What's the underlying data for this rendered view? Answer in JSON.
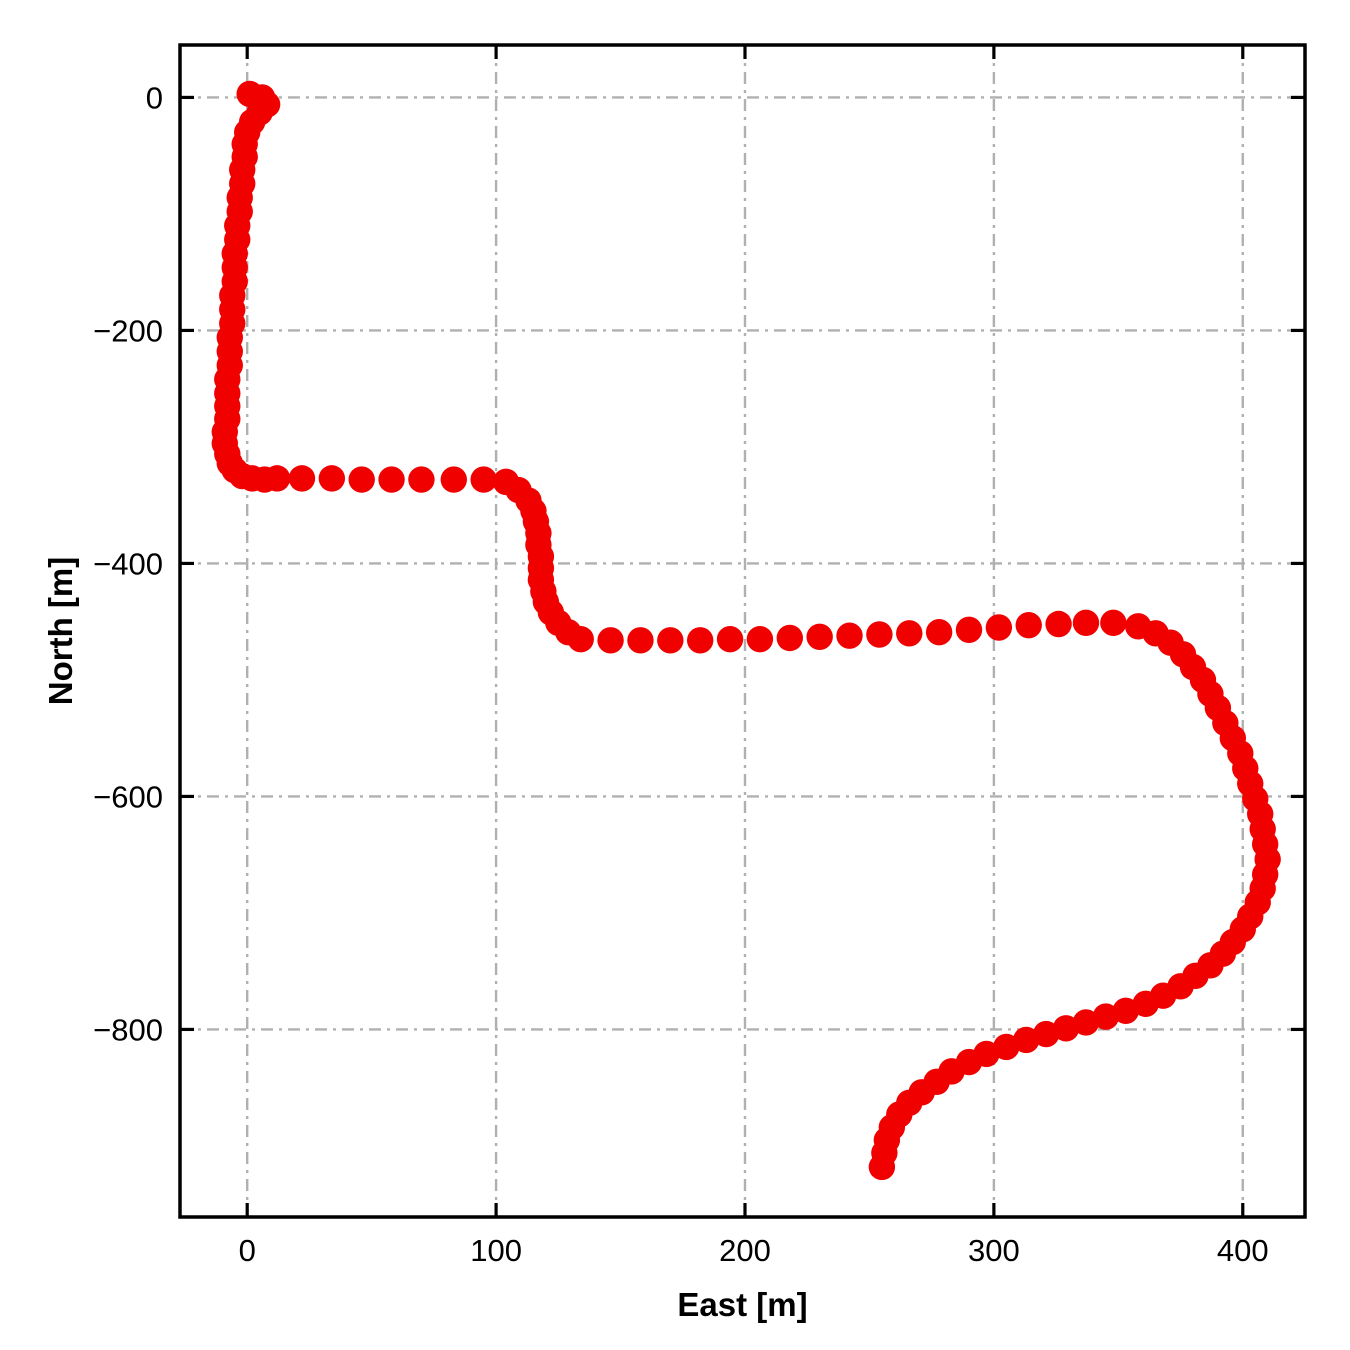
{
  "figure": {
    "background": "#ffffff"
  },
  "chart_data": {
    "type": "scatter",
    "title": "",
    "xlabel": "East [m]",
    "ylabel": "North [m]",
    "xlim": [
      -27,
      425
    ],
    "ylim": [
      -961,
      45
    ],
    "xticks": {
      "values": [
        0,
        100,
        200,
        300,
        400
      ],
      "labels": [
        "0",
        "100",
        "200",
        "300",
        "400"
      ]
    },
    "yticks": {
      "values": [
        0,
        -200,
        -400,
        -600,
        -800
      ],
      "labels": [
        "0",
        "−200",
        "−400",
        "−600",
        "−800"
      ]
    },
    "grid": {
      "visible": true,
      "style": "dash-dot",
      "color": "#b0b0b0",
      "linewidth": 2.4
    },
    "frame_color": "#000000",
    "legend": {
      "visible": false
    },
    "series": [
      {
        "name": "trajectory",
        "marker": "circle",
        "color": "#f10000",
        "marker_radius_px": 13.2,
        "points": [
          [
            1,
            3
          ],
          [
            6,
            0
          ],
          [
            8,
            -6
          ],
          [
            5,
            -13
          ],
          [
            2,
            -21
          ],
          [
            0,
            -30
          ],
          [
            -1,
            -40
          ],
          [
            -1,
            -51
          ],
          [
            -2,
            -62
          ],
          [
            -2,
            -74
          ],
          [
            -3,
            -86
          ],
          [
            -3,
            -98
          ],
          [
            -4,
            -110
          ],
          [
            -4,
            -122
          ],
          [
            -5,
            -134
          ],
          [
            -5,
            -146
          ],
          [
            -5,
            -158
          ],
          [
            -6,
            -170
          ],
          [
            -6,
            -182
          ],
          [
            -6,
            -194
          ],
          [
            -7,
            -206
          ],
          [
            -7,
            -218
          ],
          [
            -7,
            -230
          ],
          [
            -8,
            -242
          ],
          [
            -8,
            -254
          ],
          [
            -8,
            -265
          ],
          [
            -8,
            -276
          ],
          [
            -9,
            -287
          ],
          [
            -9,
            -297
          ],
          [
            -8,
            -306
          ],
          [
            -7,
            -314
          ],
          [
            -5,
            -320
          ],
          [
            -2,
            -325
          ],
          [
            2,
            -327
          ],
          [
            7,
            -328
          ],
          [
            12,
            -327
          ],
          [
            22,
            -327
          ],
          [
            34,
            -327
          ],
          [
            46,
            -328
          ],
          [
            58,
            -328
          ],
          [
            70,
            -328
          ],
          [
            83,
            -328
          ],
          [
            95,
            -328
          ],
          [
            104,
            -330
          ],
          [
            109,
            -337
          ],
          [
            113,
            -346
          ],
          [
            115,
            -355
          ],
          [
            116,
            -364
          ],
          [
            117,
            -374
          ],
          [
            117,
            -384
          ],
          [
            118,
            -394
          ],
          [
            118,
            -404
          ],
          [
            118,
            -414
          ],
          [
            119,
            -424
          ],
          [
            120,
            -433
          ],
          [
            122,
            -442
          ],
          [
            125,
            -451
          ],
          [
            129,
            -459
          ],
          [
            134,
            -465
          ],
          [
            146,
            -466
          ],
          [
            158,
            -466
          ],
          [
            170,
            -466
          ],
          [
            182,
            -466
          ],
          [
            194,
            -465
          ],
          [
            206,
            -465
          ],
          [
            218,
            -464
          ],
          [
            230,
            -463
          ],
          [
            242,
            -462
          ],
          [
            254,
            -461
          ],
          [
            266,
            -460
          ],
          [
            278,
            -459
          ],
          [
            290,
            -457
          ],
          [
            302,
            -455
          ],
          [
            314,
            -453
          ],
          [
            326,
            -452
          ],
          [
            337,
            -451
          ],
          [
            348,
            -451
          ],
          [
            358,
            -454
          ],
          [
            365,
            -460
          ],
          [
            371,
            -468
          ],
          [
            376,
            -478
          ],
          [
            380,
            -489
          ],
          [
            384,
            -500
          ],
          [
            387,
            -512
          ],
          [
            390,
            -524
          ],
          [
            393,
            -537
          ],
          [
            396,
            -550
          ],
          [
            399,
            -563
          ],
          [
            401,
            -576
          ],
          [
            403,
            -589
          ],
          [
            405,
            -602
          ],
          [
            407,
            -615
          ],
          [
            408,
            -628
          ],
          [
            409,
            -641
          ],
          [
            410,
            -654
          ],
          [
            409,
            -667
          ],
          [
            408,
            -679
          ],
          [
            406,
            -691
          ],
          [
            403,
            -703
          ],
          [
            400,
            -714
          ],
          [
            396,
            -725
          ],
          [
            392,
            -735
          ],
          [
            387,
            -745
          ],
          [
            381,
            -754
          ],
          [
            375,
            -763
          ],
          [
            368,
            -771
          ],
          [
            361,
            -778
          ],
          [
            353,
            -784
          ],
          [
            345,
            -789
          ],
          [
            337,
            -794
          ],
          [
            329,
            -799
          ],
          [
            321,
            -804
          ],
          [
            313,
            -809
          ],
          [
            305,
            -815
          ],
          [
            297,
            -821
          ],
          [
            290,
            -828
          ],
          [
            283,
            -836
          ],
          [
            277,
            -845
          ],
          [
            271,
            -854
          ],
          [
            266,
            -863
          ],
          [
            262,
            -873
          ],
          [
            259,
            -884
          ],
          [
            257,
            -895
          ],
          [
            256,
            -906
          ],
          [
            255,
            -918
          ]
        ]
      }
    ]
  }
}
